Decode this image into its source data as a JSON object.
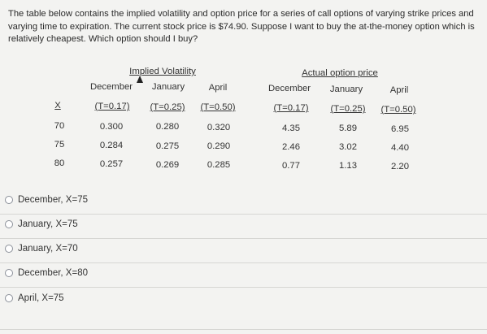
{
  "question": "The table below contains the implied volatility and option price for a series of call options of varying strike prices and varying time to expiration. The current stock price is $74.90. Suppose I want to buy the at-the-money option which is relatively cheapest. Which option should I buy?",
  "table": {
    "group_iv": "Implied Volatility",
    "group_price": "Actual option price",
    "month_headers": [
      "December",
      "January",
      "April",
      "December",
      "January",
      "April"
    ],
    "x_header": "X",
    "t_headers": [
      "(T=0.17)",
      "(T=0.25)",
      "(T=0.50)",
      "(T=0.17)",
      "(T=0.25)",
      "(T=0.50)"
    ],
    "rows": [
      {
        "x": "70",
        "vals": [
          "0.300",
          "0.280",
          "0.320",
          "4.35",
          "5.89",
          "6.95"
        ]
      },
      {
        "x": "75",
        "vals": [
          "0.284",
          "0.275",
          "0.290",
          "2.46",
          "3.02",
          "4.40"
        ]
      },
      {
        "x": "80",
        "vals": [
          "0.257",
          "0.269",
          "0.285",
          "0.77",
          "1.13",
          "2.20"
        ]
      }
    ]
  },
  "options": [
    {
      "label": "December, X=75"
    },
    {
      "label": "January, X=75"
    },
    {
      "label": "January, X=70"
    },
    {
      "label": "December, X=80"
    },
    {
      "label": "April, X=75"
    }
  ],
  "colors": {
    "background": "#f3f3f1",
    "text": "#2b2b2b",
    "radio_border": "#8a8f98"
  }
}
